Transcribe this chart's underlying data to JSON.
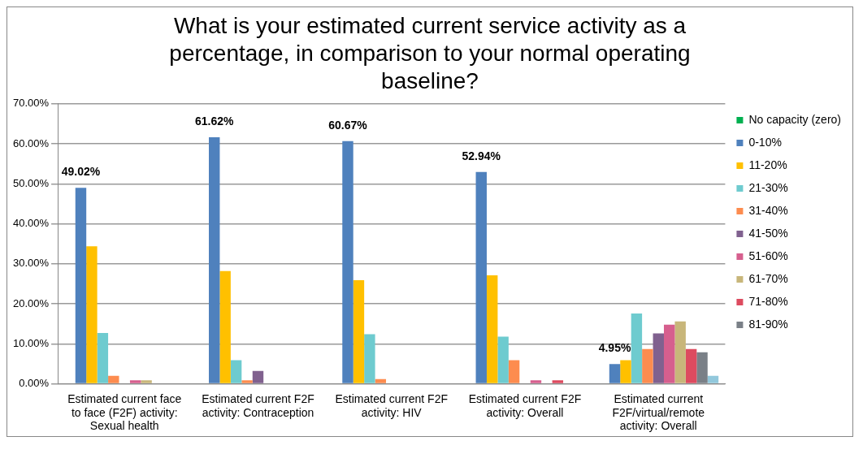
{
  "chart_data": {
    "type": "bar",
    "title": "What is your estimated current service activity as a percentage, in comparison to your normal operating baseline?",
    "categories": [
      "Estimated current face to face (F2F) activity: Sexual health",
      "Estimated current F2F activity: Contraception",
      "Estimated current F2F activity: HIV",
      "Estimated current F2F activity: Overall",
      "Estimated current F2F/virtual/remote activity: Overall"
    ],
    "series": [
      {
        "name": "No capacity (zero)",
        "color": "#00b050",
        "values": [
          0,
          0,
          0,
          0,
          0
        ]
      },
      {
        "name": "0-10%",
        "color": "#4f81bd",
        "values": [
          49.02,
          61.62,
          60.67,
          52.94,
          4.95
        ],
        "value_labels": [
          "49.02%",
          "61.62%",
          "60.67%",
          "52.94%",
          "4.95%"
        ]
      },
      {
        "name": "11-20%",
        "color": "#ffc000",
        "values": [
          34.4,
          28.2,
          25.9,
          27.1,
          5.9
        ]
      },
      {
        "name": "21-30%",
        "color": "#6ecbcf",
        "values": [
          12.7,
          5.9,
          12.4,
          11.8,
          17.6
        ]
      },
      {
        "name": "31-40%",
        "color": "#fd8c4f",
        "values": [
          2.0,
          0.9,
          1.2,
          5.9,
          8.7
        ]
      },
      {
        "name": "41-50%",
        "color": "#80618f",
        "values": [
          0,
          3.2,
          0,
          0,
          12.6
        ]
      },
      {
        "name": "51-60%",
        "color": "#d65f8e",
        "values": [
          0.9,
          0,
          0,
          0.9,
          14.8
        ]
      },
      {
        "name": "61-70%",
        "color": "#c8b67a",
        "values": [
          0.9,
          0,
          0,
          0,
          15.6
        ]
      },
      {
        "name": "71-80%",
        "color": "#dd4b5f",
        "values": [
          0,
          0,
          0,
          0.9,
          8.7
        ]
      },
      {
        "name": "81-90%",
        "color": "#7a8087",
        "values": [
          0,
          0,
          0,
          0,
          7.9
        ]
      },
      {
        "color": "#92c8dc",
        "values": [
          0,
          0,
          0,
          0,
          2.0
        ]
      }
    ],
    "ylim": [
      0,
      70
    ],
    "yticks": [
      {
        "value": 0,
        "label": "0.00%"
      },
      {
        "value": 10,
        "label": "10.00%"
      },
      {
        "value": 20,
        "label": "20.00%"
      },
      {
        "value": 30,
        "label": "30.00%"
      },
      {
        "value": 40,
        "label": "40.00%"
      },
      {
        "value": 50,
        "label": "50.00%"
      },
      {
        "value": 60,
        "label": "60.00%"
      },
      {
        "value": 70,
        "label": "70.00%"
      }
    ],
    "grid": "y",
    "legend": "right"
  }
}
